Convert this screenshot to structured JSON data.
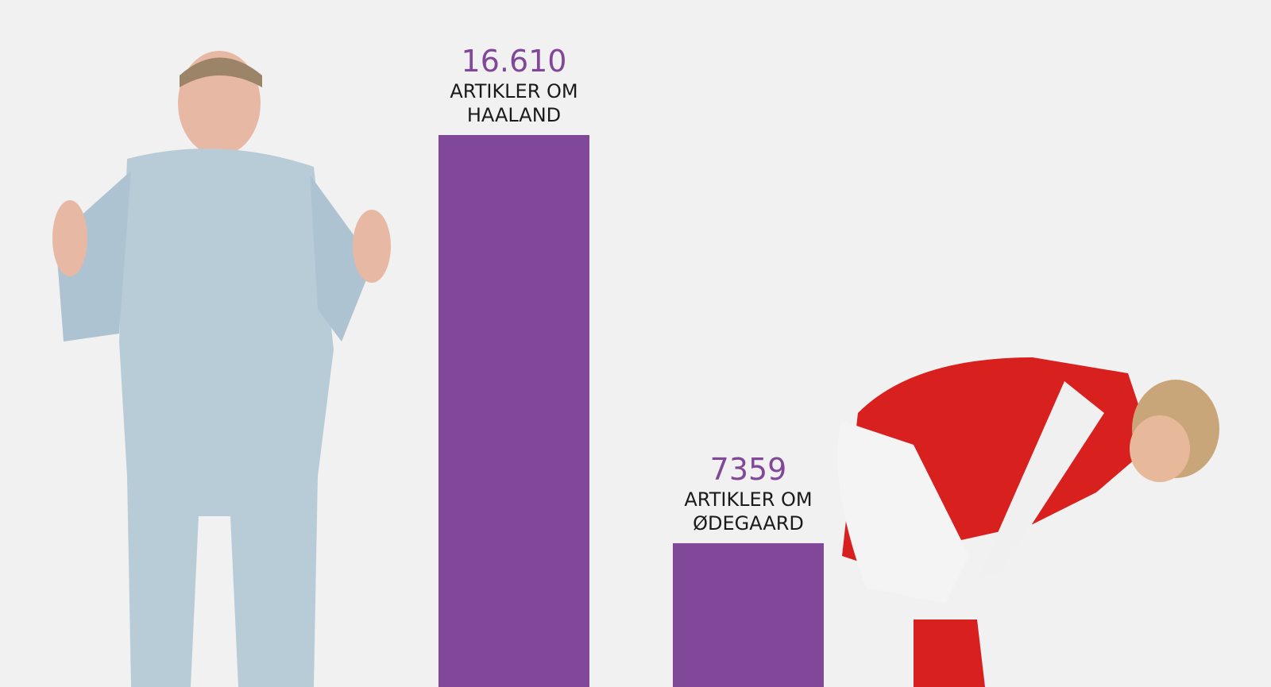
{
  "chart_data": {
    "type": "bar",
    "categories": [
      "ARTIKLER OM HAALAND",
      "ARTIKLER OM ØDEGAARD"
    ],
    "values": [
      16610,
      7359
    ],
    "value_labels": [
      "16.610",
      "7359"
    ],
    "color": "#814799",
    "ylim": [
      4100,
      19670
    ]
  }
}
